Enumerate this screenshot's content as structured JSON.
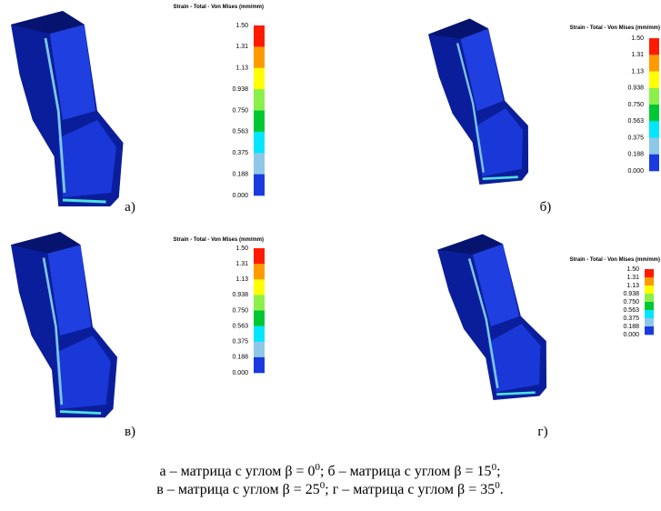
{
  "legend_title": "Strain - Total - Von Mises (mm/mm)",
  "legend_ticks": [
    "1.50",
    "1.31",
    "1.13",
    "0.938",
    "0.750",
    "0.563",
    "0.375",
    "0.188",
    "0.000"
  ],
  "panels": [
    {
      "label": "а)"
    },
    {
      "label": "б)"
    },
    {
      "label": "в)"
    },
    {
      "label": "г)"
    }
  ],
  "caption": {
    "lines": [
      [
        "а – матрица с углом β = 0",
        "0",
        "; б – матрица с углом β = 15",
        "0",
        ";"
      ],
      [
        "в – матрица с углом β = 25",
        "0",
        "; г – матрица с углом β = 35",
        "0",
        "."
      ]
    ]
  }
}
